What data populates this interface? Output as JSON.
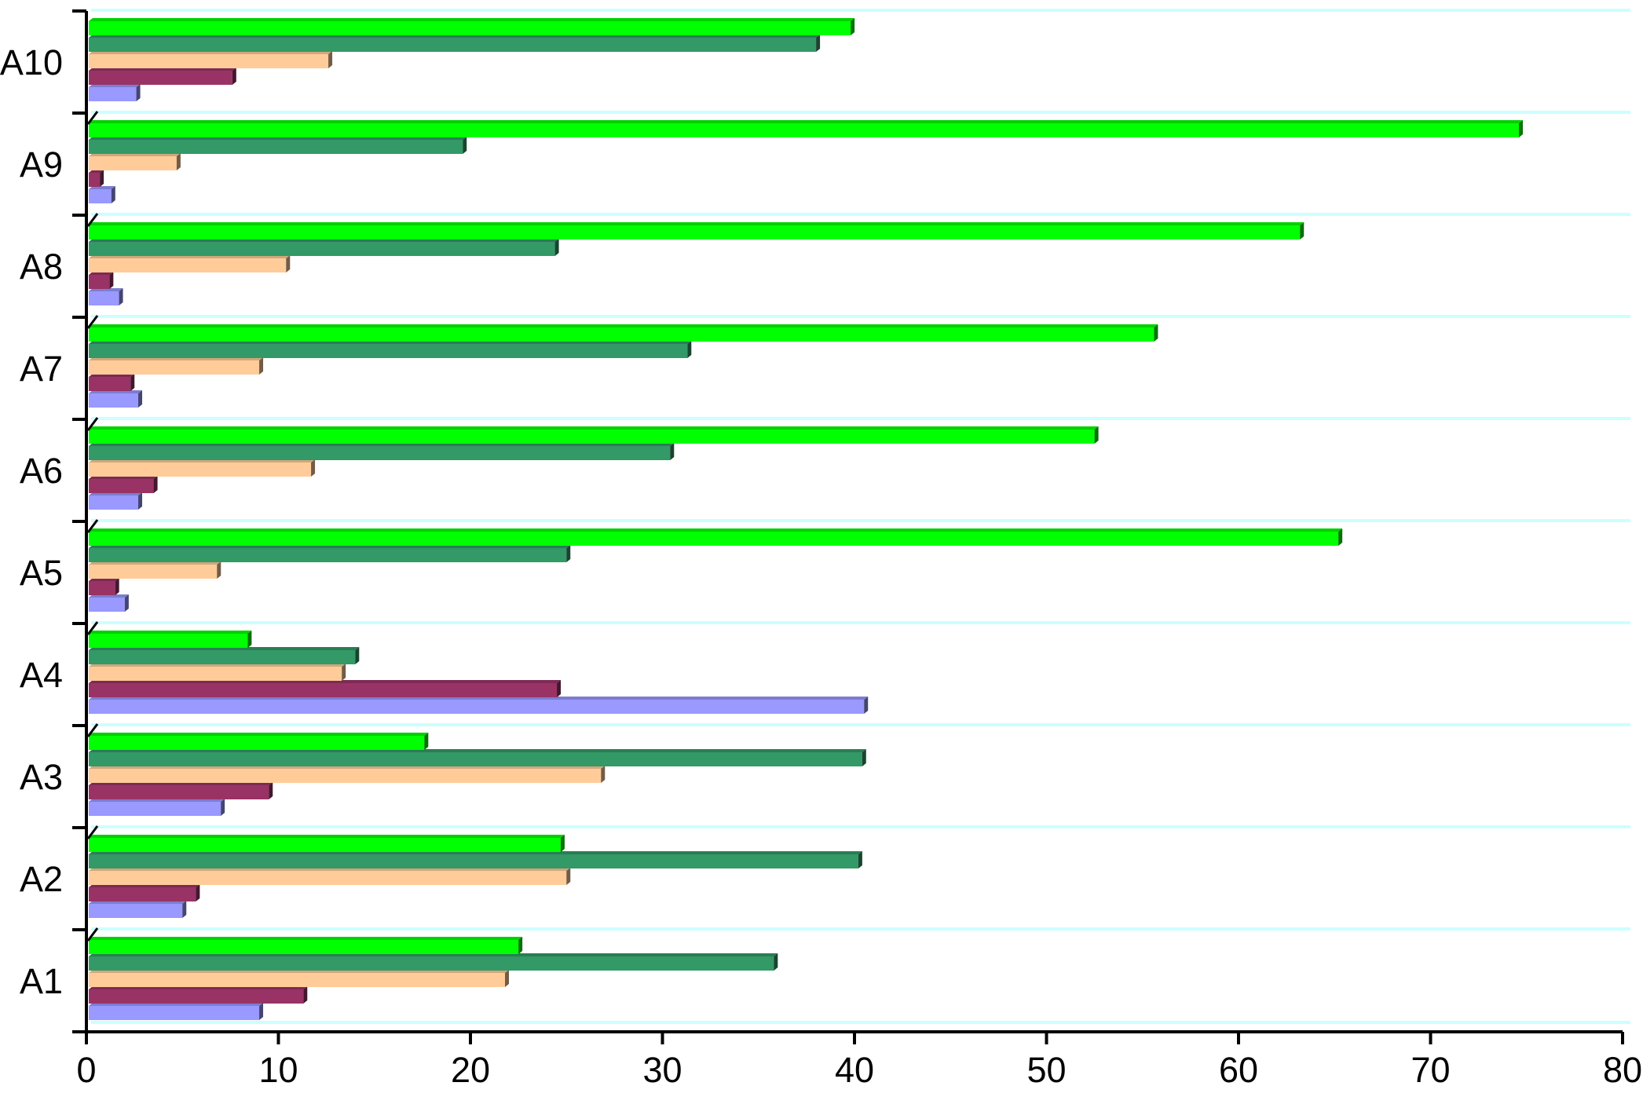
{
  "chart_data": {
    "type": "bar",
    "orientation": "horizontal",
    "style": "3d",
    "categories": [
      "A1",
      "A2",
      "A3",
      "A4",
      "A5",
      "A6",
      "A7",
      "A8",
      "A9",
      "A10"
    ],
    "xlim": [
      0,
      80
    ],
    "xticks": [
      "0",
      "10",
      "20",
      "30",
      "40",
      "50",
      "60",
      "70",
      "80"
    ],
    "grid": true,
    "series": [
      {
        "color": "#9999ff",
        "values": [
          9,
          5,
          7,
          40.5,
          2,
          2.7,
          2.7,
          1.7,
          1.3,
          2.6
        ]
      },
      {
        "color": "#993366",
        "values": [
          11.3,
          5.7,
          9.5,
          24.5,
          1.5,
          3.5,
          2.3,
          1.2,
          0.7,
          7.6
        ]
      },
      {
        "color": "#ffcc99",
        "values": [
          21.8,
          25,
          26.8,
          13.3,
          6.8,
          11.7,
          9,
          10.4,
          4.7,
          12.6
        ]
      },
      {
        "color": "#339966",
        "values": [
          35.8,
          40.2,
          40.4,
          14,
          25,
          30.4,
          31.3,
          24.4,
          19.6,
          38
        ]
      },
      {
        "color": "#00ff00",
        "values": [
          22.5,
          24.7,
          17.6,
          8.4,
          65.2,
          52.5,
          55.6,
          63.2,
          74.6,
          39.8
        ]
      }
    ]
  }
}
